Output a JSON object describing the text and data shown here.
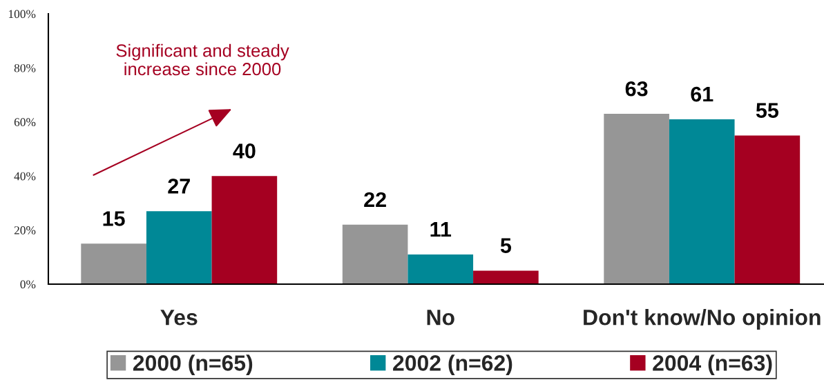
{
  "chart_data": {
    "type": "bar",
    "categories": [
      "Yes",
      "No",
      "Don't know/No opinion"
    ],
    "series": [
      {
        "name": "2000 (n=65)",
        "color": "#969696",
        "values": [
          15,
          22,
          63
        ]
      },
      {
        "name": "2002 (n=62)",
        "color": "#008896",
        "values": [
          27,
          11,
          61
        ]
      },
      {
        "name": "2004 (n=63)",
        "color": "#a50021",
        "values": [
          40,
          5,
          55
        ]
      }
    ],
    "ylim": [
      0,
      100
    ],
    "yticks": [
      {
        "value": 0,
        "label": "0%"
      },
      {
        "value": 20,
        "label": "20%"
      },
      {
        "value": 40,
        "label": "40%"
      },
      {
        "value": 60,
        "label": "60%"
      },
      {
        "value": 80,
        "label": "80%"
      },
      {
        "value": 100,
        "label": "100%"
      }
    ],
    "data_labels": true,
    "legend": "bottom",
    "annotations": [
      "Significant and steady\nincrease since 2000"
    ]
  }
}
